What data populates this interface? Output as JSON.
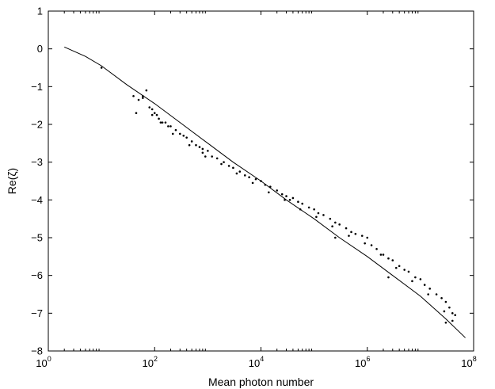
{
  "chart_data": {
    "type": "scatter",
    "xlabel": "Mean photon number",
    "ylabel": "Re(ζ)",
    "xscale": "log",
    "xlim": [
      1,
      100000000
    ],
    "ylim": [
      -8,
      1
    ],
    "grid": false,
    "x_ticks": [
      {
        "base": "10",
        "exp": "0",
        "value": 1
      },
      {
        "base": "10",
        "exp": "2",
        "value": 100
      },
      {
        "base": "10",
        "exp": "4",
        "value": 10000
      },
      {
        "base": "10",
        "exp": "6",
        "value": 1000000
      },
      {
        "base": "10",
        "exp": "8",
        "value": 100000000
      }
    ],
    "y_ticks": [
      "1",
      "0",
      "−1",
      "−2",
      "−3",
      "−4",
      "−5",
      "−6",
      "−7",
      "−8"
    ],
    "series": [
      {
        "kind": "line",
        "x": [
          2,
          5,
          10,
          30,
          100,
          300,
          1000,
          3000,
          10000,
          30000,
          100000,
          300000,
          1000000,
          3000000,
          10000000,
          30000000,
          70000000
        ],
        "y": [
          0.05,
          -0.2,
          -0.45,
          -0.95,
          -1.45,
          -1.95,
          -2.5,
          -3.0,
          -3.5,
          -4.0,
          -4.5,
          -5.0,
          -5.5,
          -6.0,
          -6.55,
          -7.15,
          -7.65
        ]
      },
      {
        "kind": "points",
        "x": [
          10,
          40,
          45,
          50,
          60,
          70,
          80,
          90,
          100,
          110,
          120,
          140,
          160,
          180,
          200,
          250,
          300,
          350,
          400,
          500,
          600,
          700,
          800,
          1000,
          1200,
          1500,
          2000,
          2500,
          3000,
          4000,
          5000,
          6000,
          8000,
          10000,
          12000,
          15000,
          20000,
          25000,
          30000,
          40000,
          50000,
          60000,
          80000,
          100000,
          120000,
          150000,
          200000,
          250000,
          300000,
          400000,
          500000,
          600000,
          800000,
          1000000,
          1200000,
          1500000,
          2000000,
          2500000,
          3000000,
          4000000,
          5000000,
          6000000,
          8000000,
          10000000,
          12000000,
          15000000,
          20000000,
          25000000,
          30000000,
          35000000,
          40000000,
          45000000
        ],
        "y": [
          -0.5,
          -1.25,
          -1.7,
          -1.35,
          -1.3,
          -1.1,
          -1.55,
          -1.6,
          -1.7,
          -1.75,
          -1.85,
          -1.95,
          -1.95,
          -2.05,
          -2.05,
          -2.15,
          -2.25,
          -2.3,
          -2.35,
          -2.45,
          -2.55,
          -2.6,
          -2.65,
          -2.7,
          -2.85,
          -2.9,
          -3.0,
          -3.1,
          -3.15,
          -3.25,
          -3.35,
          -3.4,
          -3.45,
          -3.5,
          -3.6,
          -3.65,
          -3.75,
          -3.85,
          -3.9,
          -3.95,
          -4.05,
          -4.1,
          -4.2,
          -4.25,
          -4.35,
          -4.4,
          -4.5,
          -4.6,
          -4.65,
          -4.75,
          -4.85,
          -4.9,
          -4.95,
          -5.0,
          -5.2,
          -5.3,
          -5.45,
          -5.55,
          -5.6,
          -5.75,
          -5.85,
          -5.9,
          -6.05,
          -6.1,
          -6.25,
          -6.35,
          -6.5,
          -6.6,
          -6.7,
          -6.85,
          -7.0,
          -7.05
        ]
      },
      {
        "kind": "points",
        "x": [
          60,
          90,
          130,
          220,
          450,
          900,
          1800,
          3500,
          7000,
          14000,
          28000,
          55000,
          110000,
          220000,
          450000,
          900000,
          1800000,
          3500000,
          7000000,
          14000000,
          28000000
        ],
        "y": [
          -1.25,
          -1.75,
          -1.95,
          -2.25,
          -2.55,
          -2.85,
          -3.05,
          -3.3,
          -3.55,
          -3.8,
          -4.0,
          -4.25,
          -4.45,
          -4.7,
          -4.95,
          -5.15,
          -5.45,
          -5.8,
          -6.15,
          -6.5,
          -6.95
        ]
      },
      {
        "kind": "points",
        "x": [
          250000,
          35000,
          800,
          2500000,
          30000000,
          40000000
        ],
        "y": [
          -5.0,
          -4.0,
          -2.75,
          -6.05,
          -7.25,
          -7.2
        ]
      }
    ]
  }
}
